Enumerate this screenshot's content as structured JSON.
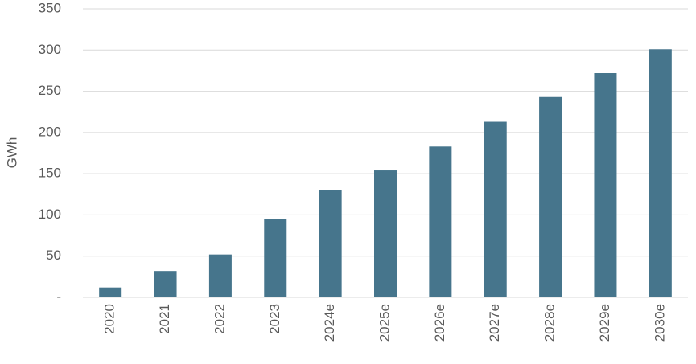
{
  "chart_data": {
    "type": "bar",
    "y_label": "GWh",
    "categories": [
      "2020",
      "2021",
      "2022",
      "2023",
      "2024e",
      "2025e",
      "2026e",
      "2027e",
      "2028e",
      "2029e",
      "2030e"
    ],
    "values": [
      12,
      32,
      52,
      95,
      130,
      154,
      183,
      213,
      243,
      272,
      301
    ],
    "color": "#46758c",
    "ylim": [
      0,
      350
    ],
    "yticks": [
      {
        "value": 0,
        "label": "-"
      },
      50,
      100,
      150,
      200,
      250,
      300,
      350
    ],
    "grid": true
  }
}
